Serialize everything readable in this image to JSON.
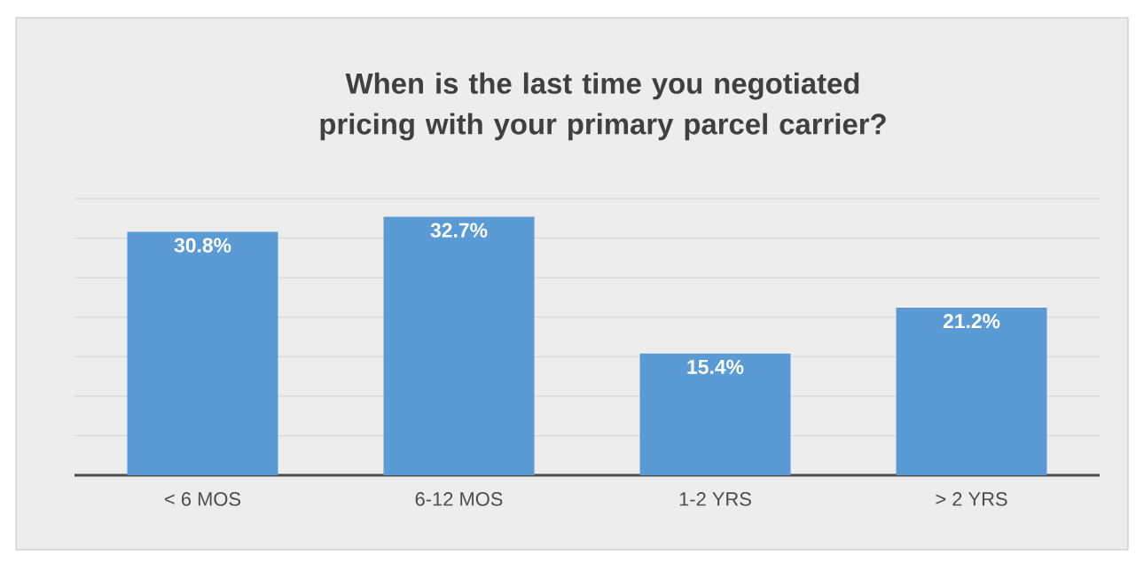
{
  "chart_data": {
    "type": "bar",
    "title": "When is the last time you negotiated pricing with your primary parcel carrier?",
    "categories": [
      "< 6 MOS",
      "6-12 MOS",
      "1-2 YRS",
      "> 2 YRS"
    ],
    "values": [
      30.8,
      32.7,
      15.4,
      21.2
    ],
    "value_labels": [
      "30.8%",
      "32.7%",
      "15.4%",
      "21.2%"
    ],
    "color": "#5b9bd5",
    "ylim": [
      0,
      35
    ],
    "yticks": [
      {
        "value": 0,
        "label": null
      },
      {
        "value": 5,
        "label": null
      },
      {
        "value": 10,
        "label": null
      },
      {
        "value": 15,
        "label": null
      },
      {
        "value": 20,
        "label": null
      },
      {
        "value": 25,
        "label": null
      },
      {
        "value": 30,
        "label": null
      },
      {
        "value": 35,
        "label": null
      }
    ],
    "grid": "y",
    "tick_labels": "x"
  }
}
